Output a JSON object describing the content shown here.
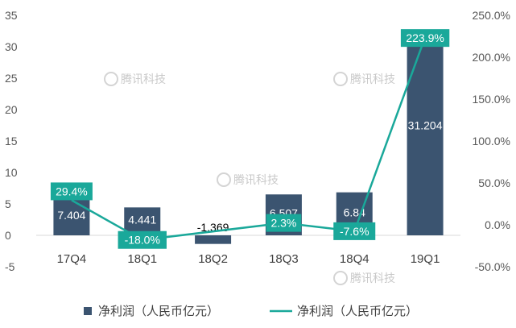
{
  "chart_data": {
    "type": "bar",
    "categories": [
      "17Q4",
      "18Q1",
      "18Q2",
      "18Q3",
      "18Q4",
      "19Q1"
    ],
    "series": [
      {
        "name": "净利润（人民币亿元）",
        "kind": "bar",
        "axis": "left",
        "values": [
          7.404,
          4.441,
          -1.369,
          6.507,
          6.84,
          31.204
        ],
        "labels": [
          "7.404",
          "4.441",
          "-1.369",
          "6.507",
          "6.84",
          "31.204"
        ]
      },
      {
        "name": "净利润（人民币亿元）",
        "kind": "line",
        "axis": "right",
        "values": [
          29.4,
          -18.0,
          null,
          2.3,
          -7.6,
          223.9
        ],
        "labels": [
          "29.4%",
          "-18.0%",
          "",
          "2.3%",
          "-7.6%",
          "223.9%"
        ]
      }
    ],
    "y_left": {
      "min": -5,
      "max": 35,
      "step": 5,
      "ticks": [
        "-5",
        "0",
        "5",
        "10",
        "15",
        "20",
        "25",
        "30",
        "35"
      ]
    },
    "y_right": {
      "min": -50,
      "max": 250,
      "step": 50,
      "ticks": [
        "-50.0%",
        "0.0%",
        "50.0%",
        "100.0%",
        "150.0%",
        "200.0%",
        "250.0%"
      ]
    },
    "grid": false,
    "legend_position": "bottom",
    "colors": {
      "bar": "#3b5470",
      "line": "#1aa89a",
      "label_box": "#1aa89a",
      "axis": "#d9d9d9"
    }
  },
  "watermark": "腾讯科技"
}
